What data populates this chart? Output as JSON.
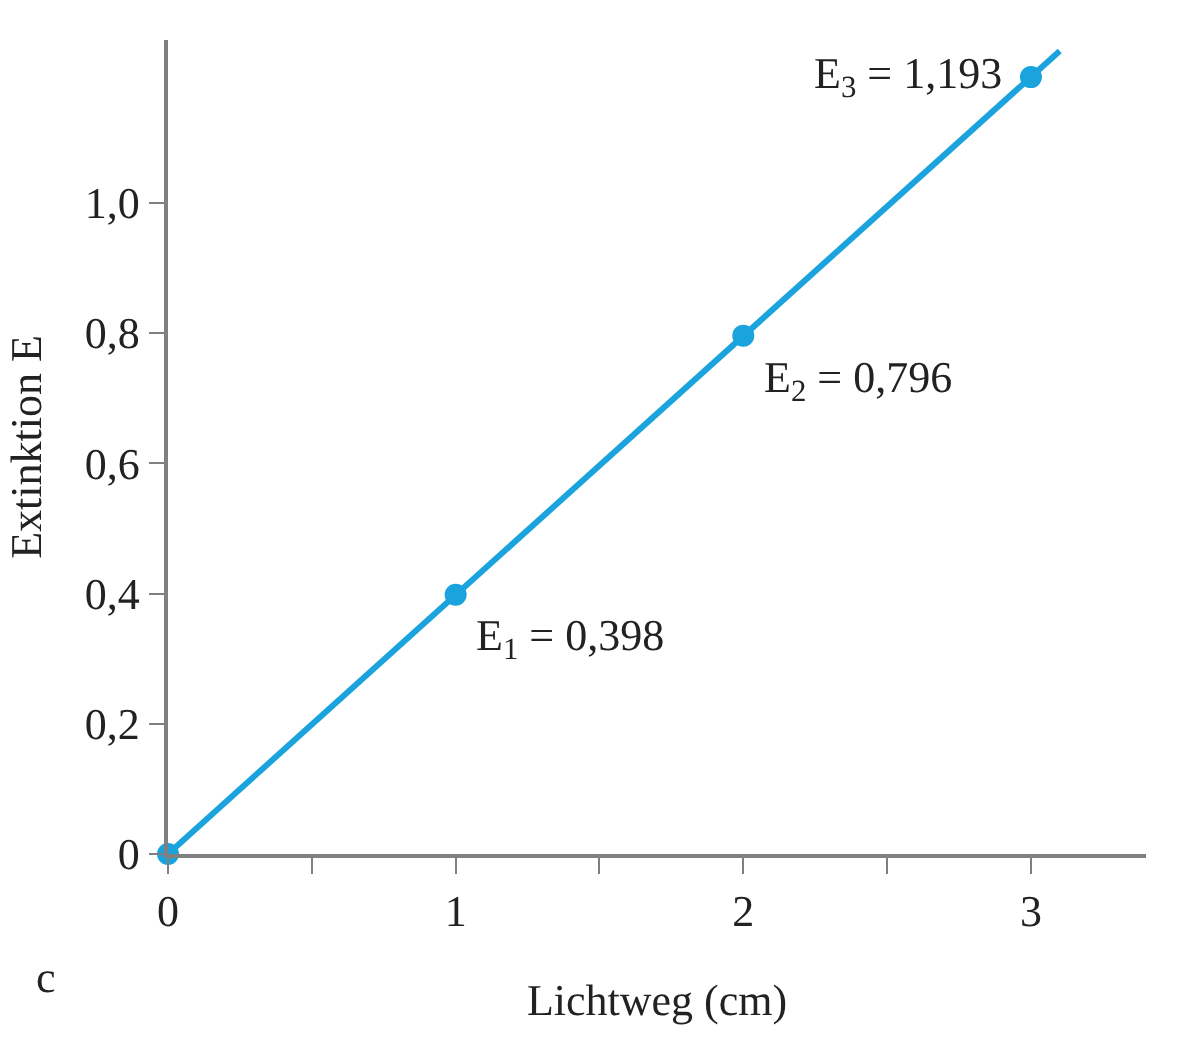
{
  "chart_data": {
    "type": "line",
    "xlabel": "Lichtweg (cm)",
    "ylabel": "Extinktion E",
    "series": [
      {
        "type": "scatter",
        "color": "#1aa3dc",
        "x": [
          0,
          1,
          2,
          3
        ],
        "values": [
          0,
          0.398,
          0.796,
          1.193
        ],
        "marker": "circle"
      },
      {
        "color": "#1aa3dc",
        "x": [
          0,
          3.1
        ],
        "values": [
          0,
          1.233
        ],
        "marker": "none",
        "line_style": "solid"
      }
    ],
    "xlim": [
      0,
      3.4
    ],
    "ylim": [
      0,
      1.25
    ],
    "xticks": [
      0,
      {
        "value": 0.5,
        "label": null
      },
      1,
      {
        "value": 1.5,
        "label": null
      },
      2,
      {
        "value": 2.5,
        "label": null
      },
      3
    ],
    "yticks": [
      0,
      {
        "value": 0.2,
        "label": "0,2"
      },
      {
        "value": 0.4,
        "label": "0,4"
      },
      {
        "value": 0.6,
        "label": "0,6"
      },
      {
        "value": 0.8,
        "label": "0,8"
      },
      {
        "value": 1.0,
        "label": "1,0"
      }
    ],
    "annotations": [
      {
        "text": "E$_{1}$ = 0,398",
        "x": 1,
        "y": 0.398
      },
      {
        "text": "E$_{2}$ = 0,796",
        "x": 2,
        "y": 0.796
      },
      {
        "text": "E$_{3}$ = 1,193",
        "x": 3,
        "y": 1.193
      },
      "c"
    ]
  }
}
